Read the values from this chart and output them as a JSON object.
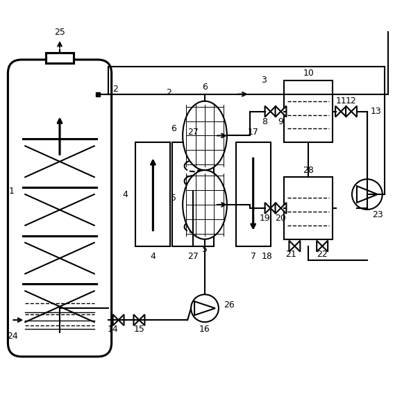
{
  "title": "",
  "background": "#ffffff",
  "line_color": "#000000",
  "line_width": 1.5,
  "fig_width": 5.92,
  "fig_height": 5.75
}
